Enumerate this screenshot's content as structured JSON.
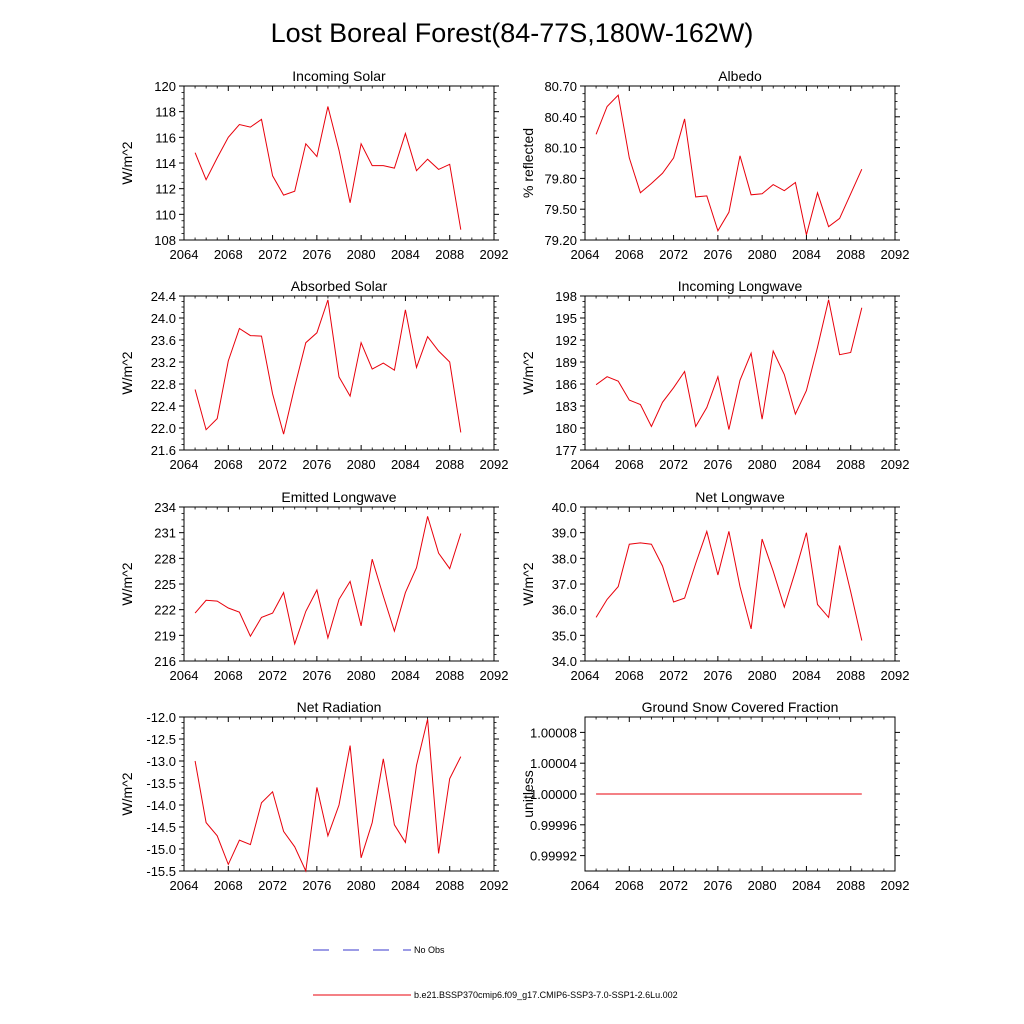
{
  "title": "Lost Boreal Forest(84-77S,180W-162W)",
  "colors": {
    "model": "#e8000b",
    "obs": "#3a3acc",
    "axis": "#000000"
  },
  "legend": {
    "obs_label": "No Obs",
    "model_label": "b.e21.BSSP370cmip6.f09_g17.CMIP6-SSP3-7.0-SSP1-2.6Lu.002"
  },
  "chart_data": [
    {
      "type": "line",
      "title": "Incoming Solar",
      "ylabel": "W/m^2",
      "xlim": [
        2064,
        2092
      ],
      "ylim": [
        108,
        120
      ],
      "x_ticks": [
        2064,
        2068,
        2072,
        2076,
        2080,
        2084,
        2088,
        2092
      ],
      "x_tick_labels": [
        "2064",
        "2068",
        "2072",
        "2076",
        "2080",
        "2084",
        "2088",
        "2092"
      ],
      "y_ticks": [
        108,
        110,
        112,
        114,
        116,
        118,
        120
      ],
      "y_tick_labels": [
        "108",
        "110",
        "112",
        "114",
        "116",
        "118",
        "120"
      ],
      "x": [
        2065,
        2066,
        2067,
        2068,
        2069,
        2070,
        2071,
        2072,
        2073,
        2074,
        2075,
        2076,
        2077,
        2078,
        2079,
        2080,
        2081,
        2082,
        2083,
        2084,
        2085,
        2086,
        2087,
        2088,
        2089
      ],
      "series": [
        {
          "values": [
            114.8,
            112.7,
            114.4,
            116.0,
            117.0,
            116.8,
            117.4,
            113.0,
            111.5,
            111.8,
            115.5,
            114.5,
            118.4,
            115.0,
            110.9,
            115.5,
            113.8,
            113.8,
            113.6,
            116.3,
            113.4,
            114.3,
            113.5,
            113.9,
            108.8
          ]
        }
      ]
    },
    {
      "type": "line",
      "title": "Albedo",
      "ylabel": "% reflected",
      "xlim": [
        2064,
        2092
      ],
      "ylim": [
        79.2,
        80.7
      ],
      "x_ticks": [
        2064,
        2068,
        2072,
        2076,
        2080,
        2084,
        2088,
        2092
      ],
      "x_tick_labels": [
        "2064",
        "2068",
        "2072",
        "2076",
        "2080",
        "2084",
        "2088",
        "2092"
      ],
      "y_ticks": [
        79.2,
        79.5,
        79.8,
        80.1,
        80.4,
        80.7
      ],
      "y_tick_labels": [
        "79.20",
        "79.50",
        "79.80",
        "80.10",
        "80.40",
        "80.70"
      ],
      "x": [
        2065,
        2066,
        2067,
        2068,
        2069,
        2070,
        2071,
        2072,
        2073,
        2074,
        2075,
        2076,
        2077,
        2078,
        2079,
        2080,
        2081,
        2082,
        2083,
        2084,
        2085,
        2086,
        2087,
        2088,
        2089
      ],
      "series": [
        {
          "values": [
            80.23,
            80.5,
            80.61,
            80.0,
            79.66,
            79.75,
            79.85,
            80.0,
            80.38,
            79.62,
            79.63,
            79.29,
            79.47,
            80.02,
            79.64,
            79.65,
            79.74,
            79.68,
            79.76,
            79.25,
            79.66,
            79.33,
            79.41,
            79.65,
            79.89
          ]
        }
      ]
    },
    {
      "type": "line",
      "title": "Absorbed Solar",
      "ylabel": "W/m^2",
      "xlim": [
        2064,
        2092
      ],
      "ylim": [
        21.6,
        24.4
      ],
      "x_ticks": [
        2064,
        2068,
        2072,
        2076,
        2080,
        2084,
        2088,
        2092
      ],
      "x_tick_labels": [
        "2064",
        "2068",
        "2072",
        "2076",
        "2080",
        "2084",
        "2088",
        "2092"
      ],
      "y_ticks": [
        21.6,
        22.0,
        22.4,
        22.8,
        23.2,
        23.6,
        24.0,
        24.4
      ],
      "y_tick_labels": [
        "21.6",
        "22.0",
        "22.4",
        "22.8",
        "23.2",
        "23.6",
        "24.0",
        "24.4"
      ],
      "x": [
        2065,
        2066,
        2067,
        2068,
        2069,
        2070,
        2071,
        2072,
        2073,
        2074,
        2075,
        2076,
        2077,
        2078,
        2079,
        2080,
        2081,
        2082,
        2083,
        2084,
        2085,
        2086,
        2087,
        2088,
        2089
      ],
      "series": [
        {
          "values": [
            22.7,
            21.97,
            22.17,
            23.22,
            23.81,
            23.68,
            23.67,
            22.62,
            21.89,
            22.75,
            23.55,
            23.73,
            24.33,
            22.93,
            22.58,
            23.55,
            23.07,
            23.18,
            23.05,
            24.15,
            23.1,
            23.66,
            23.4,
            23.2,
            21.92
          ]
        }
      ]
    },
    {
      "type": "line",
      "title": "Incoming Longwave",
      "ylabel": "W/m^2",
      "xlim": [
        2064,
        2092
      ],
      "ylim": [
        177,
        198
      ],
      "x_ticks": [
        2064,
        2068,
        2072,
        2076,
        2080,
        2084,
        2088,
        2092
      ],
      "x_tick_labels": [
        "2064",
        "2068",
        "2072",
        "2076",
        "2080",
        "2084",
        "2088",
        "2092"
      ],
      "y_ticks": [
        177,
        180,
        183,
        186,
        189,
        192,
        195,
        198
      ],
      "y_tick_labels": [
        "177",
        "180",
        "183",
        "186",
        "189",
        "192",
        "195",
        "198"
      ],
      "x": [
        2065,
        2066,
        2067,
        2068,
        2069,
        2070,
        2071,
        2072,
        2073,
        2074,
        2075,
        2076,
        2077,
        2078,
        2079,
        2080,
        2081,
        2082,
        2083,
        2084,
        2085,
        2086,
        2087,
        2088,
        2089
      ],
      "series": [
        {
          "values": [
            185.9,
            187.0,
            186.4,
            183.8,
            183.2,
            180.2,
            183.5,
            185.5,
            187.7,
            180.2,
            182.8,
            187.0,
            179.8,
            186.5,
            190.2,
            181.2,
            190.5,
            187.3,
            181.9,
            185.1,
            191.0,
            197.5,
            190.0,
            190.3,
            196.4
          ]
        }
      ]
    },
    {
      "type": "line",
      "title": "Emitted Longwave",
      "ylabel": "W/m^2",
      "xlim": [
        2064,
        2092
      ],
      "ylim": [
        216,
        234
      ],
      "x_ticks": [
        2064,
        2068,
        2072,
        2076,
        2080,
        2084,
        2088,
        2092
      ],
      "x_tick_labels": [
        "2064",
        "2068",
        "2072",
        "2076",
        "2080",
        "2084",
        "2088",
        "2092"
      ],
      "y_ticks": [
        216,
        219,
        222,
        225,
        228,
        231,
        234
      ],
      "y_tick_labels": [
        "216",
        "219",
        "222",
        "225",
        "228",
        "231",
        "234"
      ],
      "x": [
        2065,
        2066,
        2067,
        2068,
        2069,
        2070,
        2071,
        2072,
        2073,
        2074,
        2075,
        2076,
        2077,
        2078,
        2079,
        2080,
        2081,
        2082,
        2083,
        2084,
        2085,
        2086,
        2087,
        2088,
        2089
      ],
      "series": [
        {
          "values": [
            221.6,
            223.1,
            223.0,
            222.2,
            221.7,
            218.9,
            221.1,
            221.6,
            224.0,
            218.0,
            221.8,
            224.3,
            218.7,
            223.2,
            225.3,
            220.1,
            227.9,
            223.6,
            219.5,
            224.0,
            226.9,
            232.9,
            228.6,
            226.8,
            230.9
          ]
        }
      ]
    },
    {
      "type": "line",
      "title": "Net Longwave",
      "ylabel": "W/m^2",
      "xlim": [
        2064,
        2092
      ],
      "ylim": [
        34.0,
        40.0
      ],
      "x_ticks": [
        2064,
        2068,
        2072,
        2076,
        2080,
        2084,
        2088,
        2092
      ],
      "x_tick_labels": [
        "2064",
        "2068",
        "2072",
        "2076",
        "2080",
        "2084",
        "2088",
        "2092"
      ],
      "y_ticks": [
        34.0,
        35.0,
        36.0,
        37.0,
        38.0,
        39.0,
        40.0
      ],
      "y_tick_labels": [
        "34.0",
        "35.0",
        "36.0",
        "37.0",
        "38.0",
        "39.0",
        "40.0"
      ],
      "x": [
        2065,
        2066,
        2067,
        2068,
        2069,
        2070,
        2071,
        2072,
        2073,
        2074,
        2075,
        2076,
        2077,
        2078,
        2079,
        2080,
        2081,
        2082,
        2083,
        2084,
        2085,
        2086,
        2087,
        2088,
        2089
      ],
      "series": [
        {
          "values": [
            35.7,
            36.4,
            36.9,
            38.55,
            38.6,
            38.55,
            37.7,
            36.3,
            36.45,
            37.8,
            39.05,
            37.35,
            39.05,
            36.9,
            35.25,
            38.75,
            37.5,
            36.1,
            37.5,
            39.0,
            36.2,
            35.7,
            38.5,
            36.7,
            34.8
          ]
        }
      ]
    },
    {
      "type": "line",
      "title": "Net Radiation",
      "ylabel": "W/m^2",
      "xlim": [
        2064,
        2092
      ],
      "ylim": [
        -15.5,
        -12.0
      ],
      "x_ticks": [
        2064,
        2068,
        2072,
        2076,
        2080,
        2084,
        2088,
        2092
      ],
      "x_tick_labels": [
        "2064",
        "2068",
        "2072",
        "2076",
        "2080",
        "2084",
        "2088",
        "2092"
      ],
      "y_ticks": [
        -15.5,
        -15.0,
        -14.5,
        -14.0,
        -13.5,
        -13.0,
        -12.5,
        -12.0
      ],
      "y_tick_labels": [
        "-15.5",
        "-15.0",
        "-14.5",
        "-14.0",
        "-13.5",
        "-13.0",
        "-12.5",
        "-12.0"
      ],
      "x": [
        2065,
        2066,
        2067,
        2068,
        2069,
        2070,
        2071,
        2072,
        2073,
        2074,
        2075,
        2076,
        2077,
        2078,
        2079,
        2080,
        2081,
        2082,
        2083,
        2084,
        2085,
        2086,
        2087,
        2088,
        2089
      ],
      "series": [
        {
          "values": [
            -13.0,
            -14.4,
            -14.7,
            -15.35,
            -14.8,
            -14.9,
            -13.95,
            -13.7,
            -14.6,
            -14.95,
            -15.5,
            -13.6,
            -14.7,
            -14.0,
            -12.65,
            -15.2,
            -14.4,
            -12.95,
            -14.45,
            -14.85,
            -13.1,
            -12.05,
            -15.1,
            -13.4,
            -12.9
          ]
        }
      ]
    },
    {
      "type": "line",
      "title": "Ground Snow Covered Fraction",
      "ylabel": "unitless",
      "xlim": [
        2064,
        2092
      ],
      "ylim": [
        0.9999,
        1.0001
      ],
      "x_ticks": [
        2064,
        2068,
        2072,
        2076,
        2080,
        2084,
        2088,
        2092
      ],
      "x_tick_labels": [
        "2064",
        "2068",
        "2072",
        "2076",
        "2080",
        "2084",
        "2088",
        "2092"
      ],
      "y_ticks": [
        0.99992,
        0.99996,
        1.0,
        1.00004,
        1.00008
      ],
      "y_tick_labels": [
        "0.99992",
        "0.99996",
        "1.00000",
        "1.00004",
        "1.00008"
      ],
      "x": [
        2065,
        2066,
        2067,
        2068,
        2069,
        2070,
        2071,
        2072,
        2073,
        2074,
        2075,
        2076,
        2077,
        2078,
        2079,
        2080,
        2081,
        2082,
        2083,
        2084,
        2085,
        2086,
        2087,
        2088,
        2089
      ],
      "series": [
        {
          "values": [
            1.0,
            1.0,
            1.0,
            1.0,
            1.0,
            1.0,
            1.0,
            1.0,
            1.0,
            1.0,
            1.0,
            1.0,
            1.0,
            1.0,
            1.0,
            1.0,
            1.0,
            1.0,
            1.0,
            1.0,
            1.0,
            1.0,
            1.0,
            1.0,
            1.0
          ]
        }
      ]
    }
  ]
}
